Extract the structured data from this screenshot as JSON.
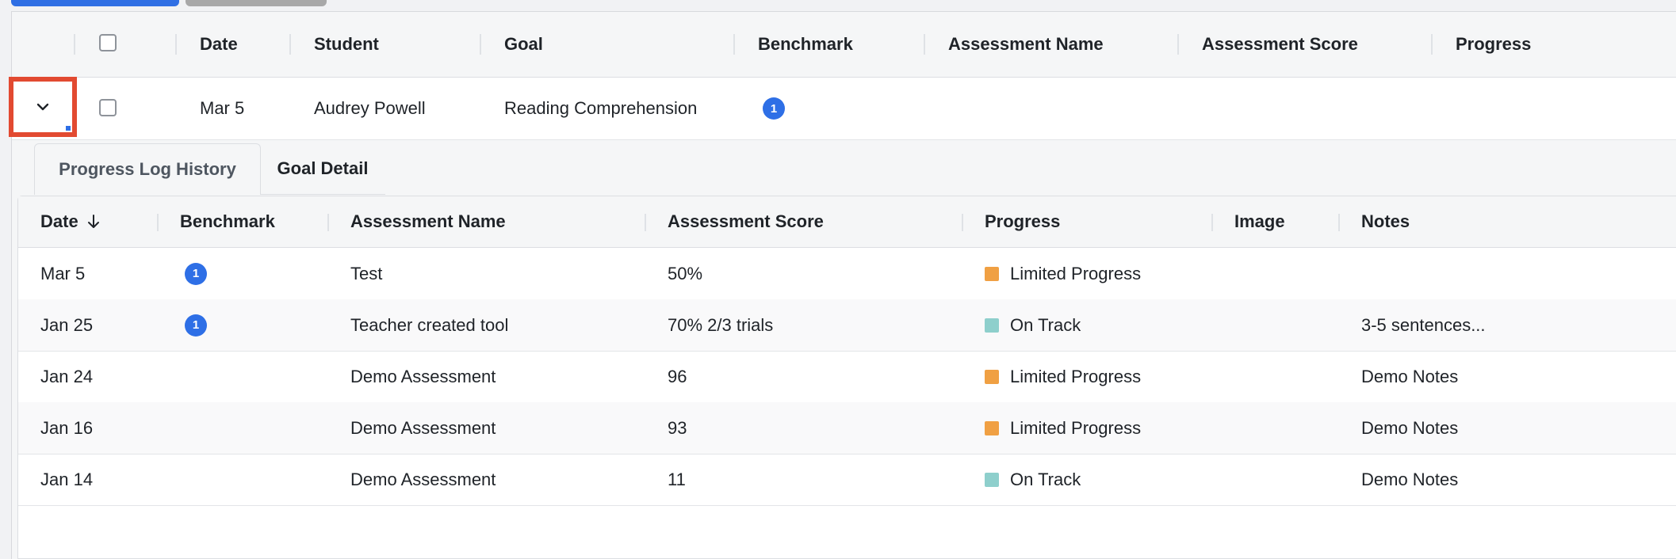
{
  "colors": {
    "accent": "#2e6fe6",
    "highlight": "#e24a31",
    "limited": "#f0a043",
    "on_track": "#8ecfcc"
  },
  "outer_table": {
    "headers": {
      "date": "Date",
      "student": "Student",
      "goal": "Goal",
      "benchmark": "Benchmark",
      "assessment_name": "Assessment Name",
      "assessment_score": "Assessment Score",
      "progress": "Progress"
    },
    "row": {
      "date": "Mar 5",
      "student": "Audrey Powell",
      "goal": "Reading Comprehension",
      "benchmark": "1",
      "expand_icon": "chevron-down-icon"
    }
  },
  "tabs": [
    {
      "label": "Progress Log History",
      "active": true
    },
    {
      "label": "Goal Detail",
      "active": false
    }
  ],
  "progress_log": {
    "headers": {
      "date": "Date",
      "sort_icon": "arrow-down-icon",
      "benchmark": "Benchmark",
      "assessment_name": "Assessment Name",
      "assessment_score": "Assessment Score",
      "progress": "Progress",
      "image": "Image",
      "notes": "Notes"
    },
    "rows": [
      {
        "date": "Mar 5",
        "benchmark": "1",
        "assessment_name": "Test",
        "assessment_score": "50%",
        "progress": "Limited Progress",
        "progress_status": "limited",
        "notes": ""
      },
      {
        "date": "Jan 25",
        "benchmark": "1",
        "assessment_name": "Teacher created tool",
        "assessment_score": "70% 2/3 trials",
        "progress": "On Track",
        "progress_status": "on_track",
        "notes": "3-5 sentences..."
      },
      {
        "date": "Jan 24",
        "benchmark": "",
        "assessment_name": "Demo Assessment",
        "assessment_score": "96",
        "progress": "Limited Progress",
        "progress_status": "limited",
        "notes": "Demo Notes"
      },
      {
        "date": "Jan 16",
        "benchmark": "",
        "assessment_name": "Demo Assessment",
        "assessment_score": "93",
        "progress": "Limited Progress",
        "progress_status": "limited",
        "notes": "Demo Notes"
      },
      {
        "date": "Jan 14",
        "benchmark": "",
        "assessment_name": "Demo Assessment",
        "assessment_score": "11",
        "progress": "On Track",
        "progress_status": "on_track",
        "notes": "Demo Notes"
      }
    ]
  }
}
